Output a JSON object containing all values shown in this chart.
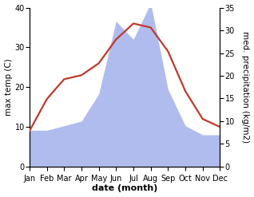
{
  "months": [
    "Jan",
    "Feb",
    "Mar",
    "Apr",
    "May",
    "Jun",
    "Jul",
    "Aug",
    "Sep",
    "Oct",
    "Nov",
    "Dec"
  ],
  "temperature": [
    9,
    17,
    22,
    23,
    26,
    32,
    36,
    35,
    29,
    19,
    12,
    10
  ],
  "precipitation": [
    8,
    8,
    9,
    10,
    16,
    32,
    28,
    36,
    17,
    9,
    7,
    7
  ],
  "temp_color": "#c0392b",
  "precip_color": "#b0bcee",
  "temp_ylim": [
    0,
    40
  ],
  "precip_ylim": [
    0,
    35
  ],
  "temp_yticks": [
    0,
    10,
    20,
    30,
    40
  ],
  "precip_yticks": [
    0,
    5,
    10,
    15,
    20,
    25,
    30,
    35
  ],
  "xlabel": "date (month)",
  "ylabel_left": "max temp (C)",
  "ylabel_right": "med. precipitation (kg/m2)",
  "xlabel_fontsize": 8,
  "ylabel_fontsize": 7.5,
  "tick_fontsize": 7
}
